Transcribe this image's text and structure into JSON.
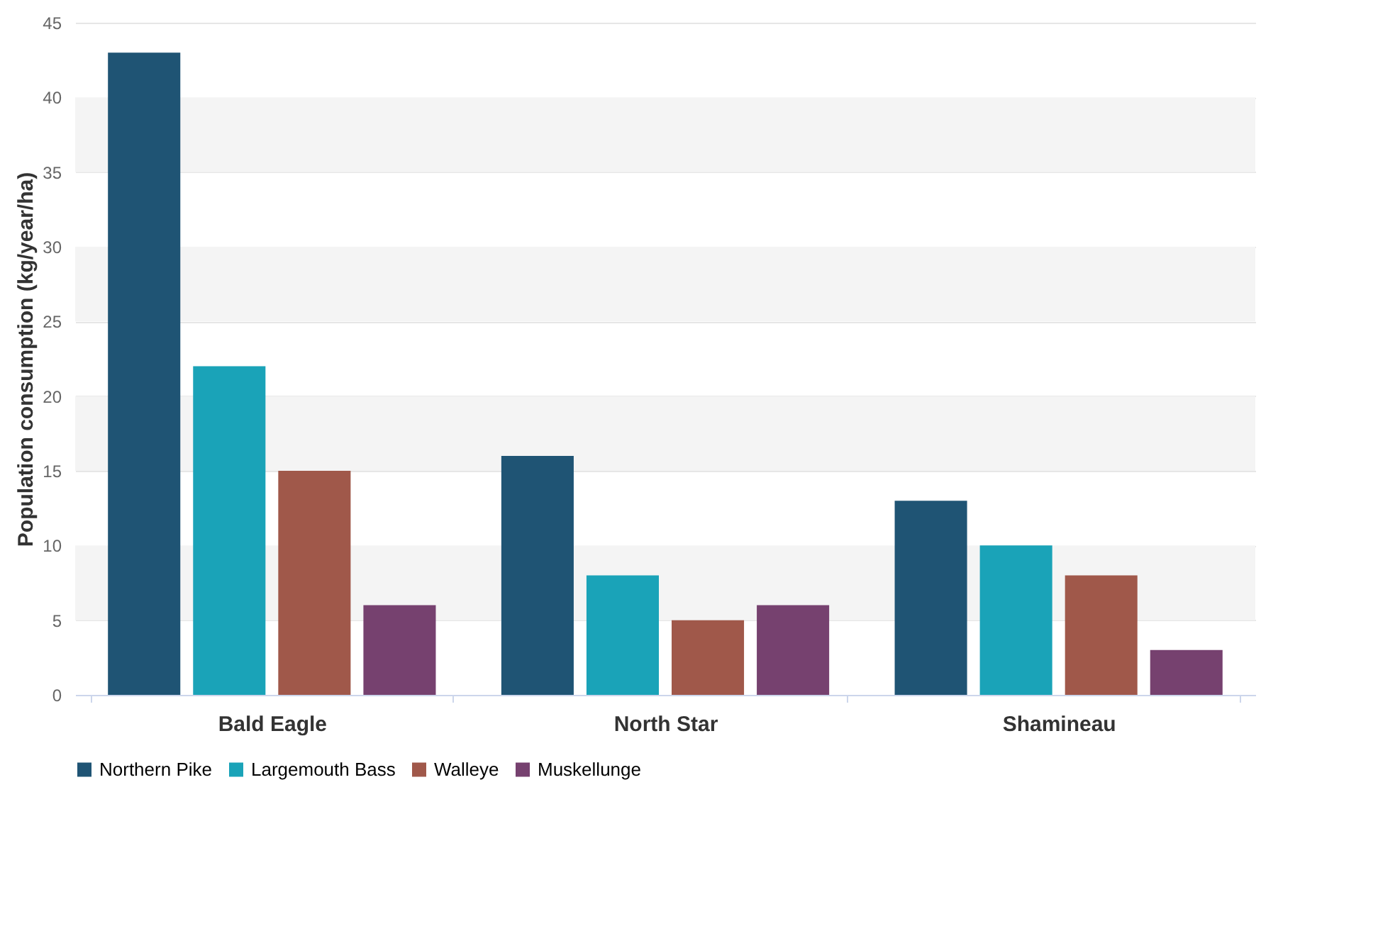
{
  "chart_data": {
    "type": "bar",
    "ylabel": "Population consumption (kg/year/ha)",
    "categories": [
      "Bald Eagle",
      "North Star",
      "Shamineau"
    ],
    "series": [
      {
        "name": "Northern Pike",
        "color": "#1f5474",
        "values": [
          43,
          16,
          13
        ]
      },
      {
        "name": "Largemouth Bass",
        "color": "#1aa3b8",
        "values": [
          22,
          8,
          10
        ]
      },
      {
        "name": "Walleye",
        "color": "#a0584a",
        "values": [
          15,
          5,
          8
        ]
      },
      {
        "name": "Muskellunge",
        "color": "#76416f",
        "values": [
          6,
          6,
          3
        ]
      }
    ],
    "ylim": [
      0,
      45
    ],
    "yticks": [
      0,
      5,
      10,
      15,
      20,
      25,
      30,
      35,
      40,
      45
    ],
    "bands": [
      {
        "axis": "y",
        "from": 5,
        "to": 10,
        "color": "#f4f4f4"
      },
      {
        "axis": "y",
        "from": 15,
        "to": 20,
        "color": "#f4f4f4"
      },
      {
        "axis": "y",
        "from": 25,
        "to": 30,
        "color": "#f4f4f4"
      },
      {
        "axis": "y",
        "from": 35,
        "to": 40,
        "color": "#f4f4f4"
      }
    ],
    "grid": "y",
    "legend": "bottom"
  }
}
